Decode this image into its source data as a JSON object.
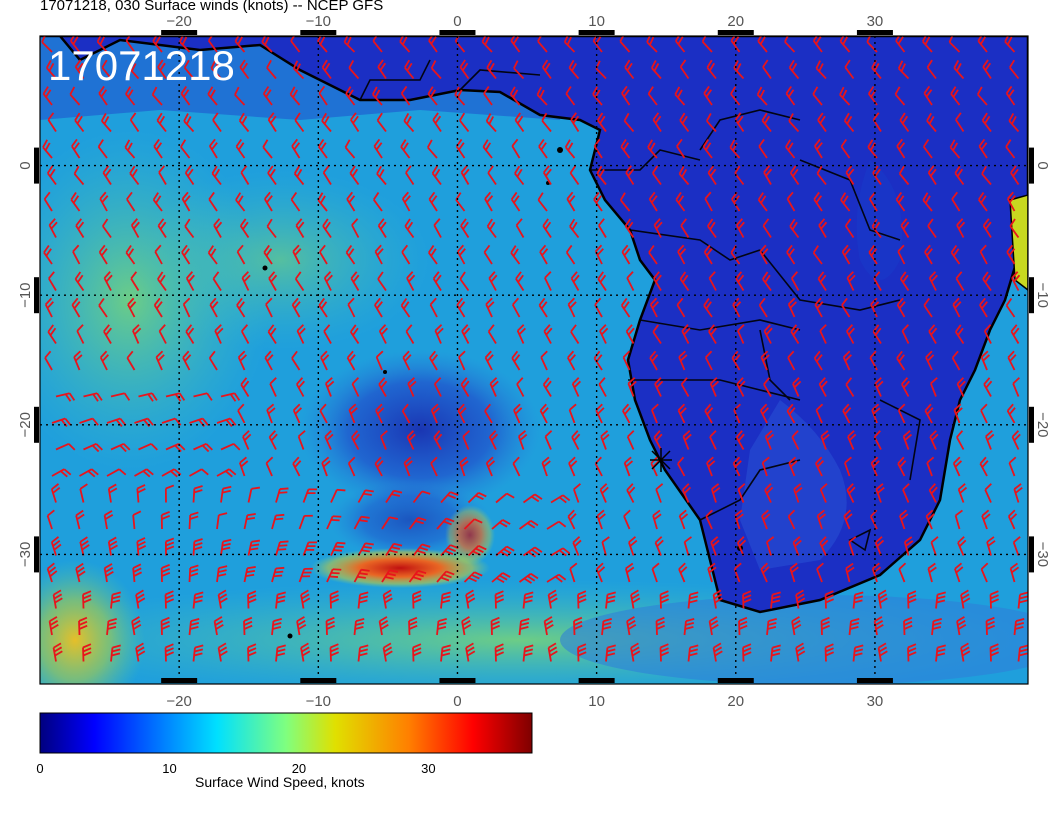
{
  "figure": {
    "title": "17071218, 030 Surface winds (knots) -- NCEP GFS",
    "stamp": "17071218"
  },
  "map": {
    "projection": "cylindrical",
    "lon_range": [
      -30,
      41
    ],
    "lat_range": [
      -40,
      10
    ],
    "grid_spacing_deg": 10,
    "grid_style": "dotted",
    "x_ticks": [
      "−20",
      "−10",
      "0",
      "10",
      "20",
      "30"
    ],
    "x_tick_values": [
      -20,
      -10,
      0,
      10,
      20,
      30
    ],
    "y_ticks": [
      "0",
      "−10",
      "−20",
      "−30"
    ],
    "y_tick_values": [
      0,
      -10,
      -20,
      -30
    ],
    "colors": {
      "land_low": "#1b2fc4",
      "ocean_mid": "#1fa9e0",
      "ocean_high": "#38c8c4",
      "coast_line": "#000000",
      "barb": "#e8141c",
      "grid": "#000000"
    },
    "features": [
      {
        "name": "africa-landmass",
        "kind": "land"
      },
      {
        "name": "low-pressure-jet",
        "kind": "wind-maximum"
      },
      {
        "name": "southern-westerlies",
        "kind": "wind-belt"
      }
    ],
    "symbols": [
      "wind-barb",
      "station-marker"
    ]
  },
  "colorbar": {
    "label": "Surface Wind Speed, knots",
    "min": 0,
    "max": 38,
    "ticks": [
      "0",
      "10",
      "20",
      "30"
    ],
    "tick_values": [
      0,
      10,
      20,
      30
    ],
    "colormap": "jet"
  }
}
